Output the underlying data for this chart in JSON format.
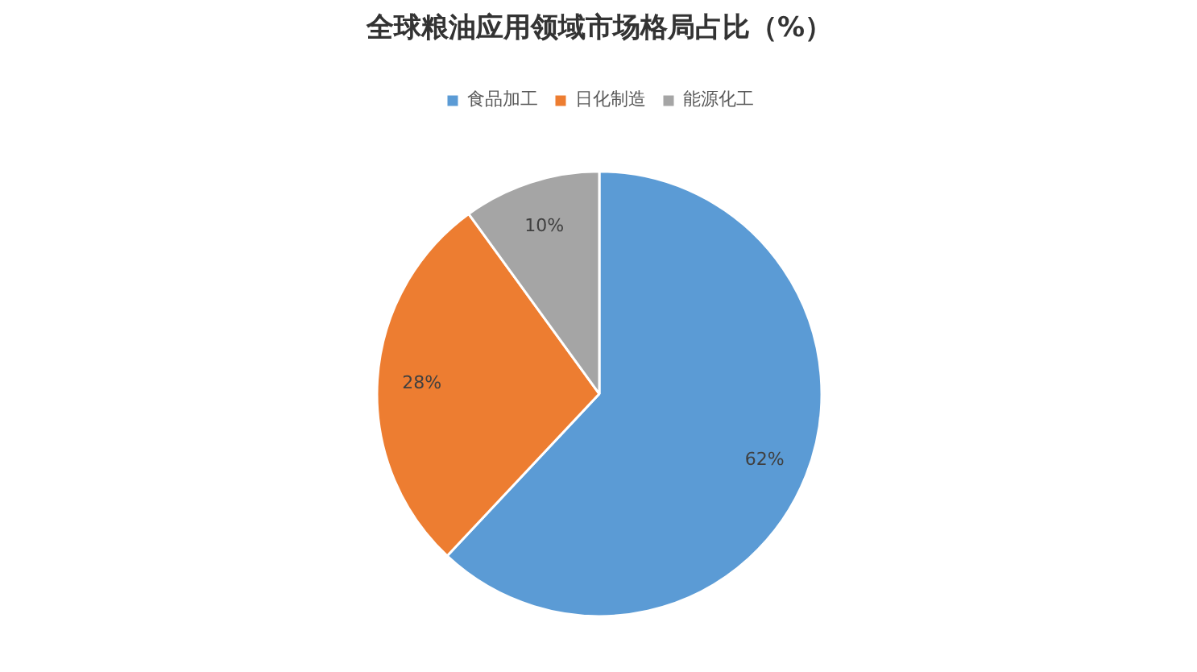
{
  "chart_data": {
    "type": "pie",
    "title": "全球粮油应用领域市场格局占比（%）",
    "categories": [
      "食品加工",
      "日化制造",
      "能源化工"
    ],
    "values": [
      62,
      28,
      10
    ],
    "colors": [
      "#5b9bd5",
      "#ed7d31",
      "#a5a5a5"
    ],
    "value_labels": [
      "62%",
      "28%",
      "10%"
    ],
    "legend": "top"
  }
}
